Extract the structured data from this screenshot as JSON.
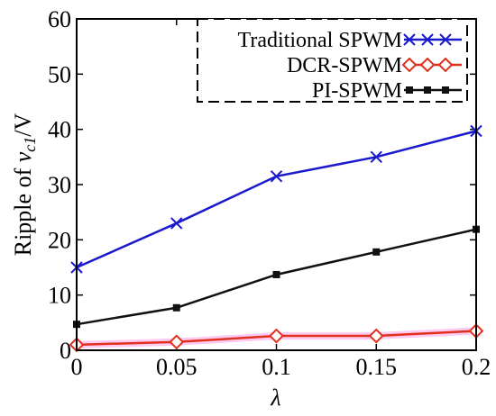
{
  "chart_data": {
    "type": "line",
    "xlabel": "λ",
    "ylabel_prefix": "Ripple of ",
    "ylabel_var": "v",
    "ylabel_sub": "c1",
    "ylabel_suffix": "/V",
    "x_ticks": [
      "0",
      "0.05",
      "0.1",
      "0.15",
      "0.2"
    ],
    "y_ticks": [
      "0",
      "10",
      "20",
      "30",
      "40",
      "50",
      "60"
    ],
    "xlim": [
      0,
      0.2
    ],
    "ylim": [
      0,
      60
    ],
    "x": [
      0,
      0.05,
      0.1,
      0.15,
      0.2
    ],
    "grid": false,
    "legend_position": "top-right",
    "series": [
      {
        "name": "Traditional SPWM",
        "values": [
          15.0,
          23.0,
          31.5,
          35.0,
          39.7
        ],
        "color": "#1a1acc",
        "marker": "x"
      },
      {
        "name": "DCR-SPWM",
        "values": [
          1.0,
          1.5,
          2.6,
          2.6,
          3.5
        ],
        "color": "#e0301e",
        "marker": "diamond"
      },
      {
        "name": "PI-SPWM",
        "values": [
          4.7,
          7.7,
          13.7,
          17.8,
          21.9
        ],
        "color": "#111111",
        "marker": "square"
      }
    ]
  }
}
